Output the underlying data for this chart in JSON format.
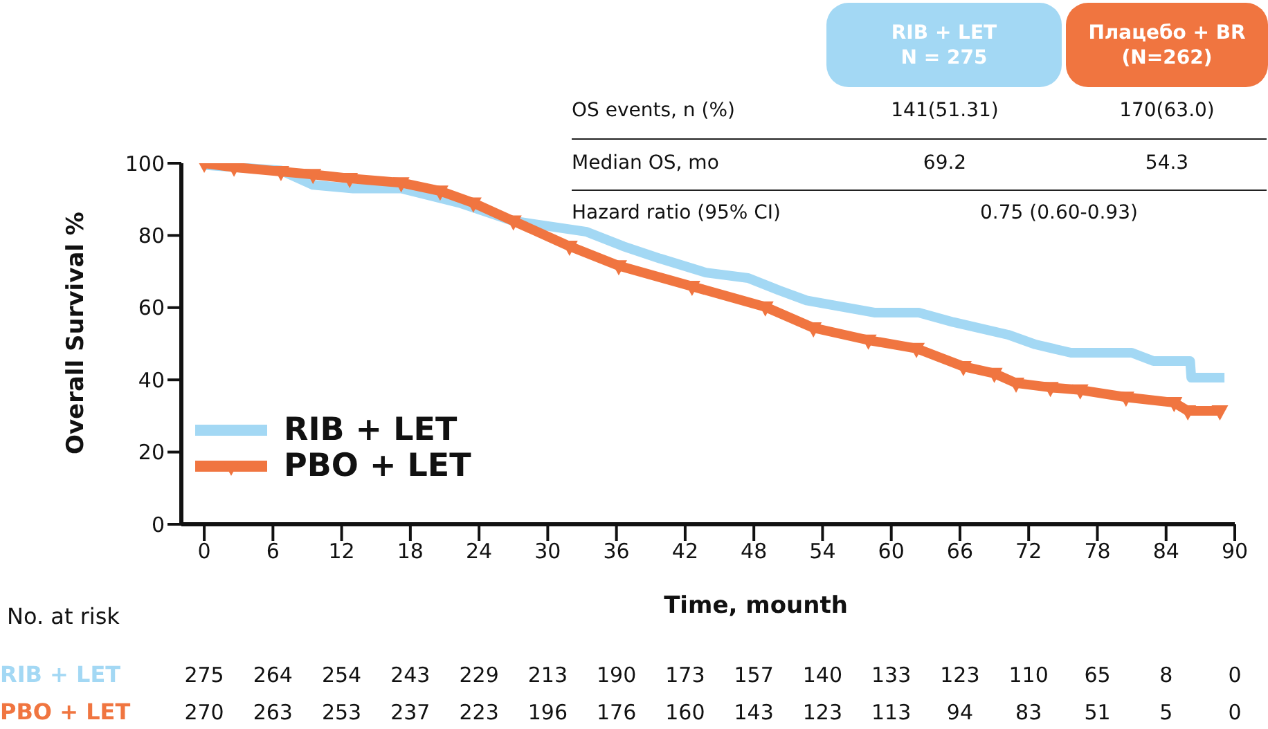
{
  "chart_data": {
    "type": "line",
    "ylabel": "Overall Survival %",
    "xlabel": "Time, mounth",
    "xlim": [
      -2,
      90
    ],
    "xticks": [
      0,
      6,
      12,
      18,
      24,
      30,
      36,
      42,
      48,
      54,
      60,
      66,
      72,
      78,
      84,
      90
    ],
    "ylim": [
      0,
      100
    ],
    "yticks": [
      0,
      20,
      40,
      60,
      80,
      100
    ],
    "legend": "bottom left",
    "line_style": "solid",
    "series": [
      {
        "name": "RIB + LET",
        "color": "#a3d8f4",
        "marker": "none",
        "x": [
          0,
          6.7,
          9.5,
          13,
          17.2,
          22.3,
          27,
          33.4,
          36.6,
          39.8,
          43.8,
          47.5,
          50.2,
          52.6,
          58.6,
          62.4,
          65.4,
          70.2,
          72.6,
          75.7,
          81,
          82.9,
          86.1,
          86.2,
          89.1
        ],
        "values": [
          99.5,
          98,
          94,
          93,
          93,
          89,
          84,
          81,
          77,
          73.6,
          69.7,
          68.2,
          64.8,
          62,
          58.6,
          58.6,
          56,
          52.5,
          49.8,
          47.5,
          47.5,
          45.2,
          45.2,
          40.6,
          40.6
        ]
      },
      {
        "name": "PBO + LET",
        "color": "#f07540",
        "marker": "triangle",
        "x": [
          0,
          2.6,
          6.7,
          9.5,
          12.7,
          17.2,
          20.6,
          23.5,
          27,
          31.9,
          36.2,
          42.6,
          49,
          53.2,
          58,
          62.2,
          66.3,
          69,
          70.9,
          73.9,
          76.5,
          80.5,
          84.7,
          85.9,
          88.7
        ],
        "values": [
          100,
          98.9,
          97.7,
          96.9,
          95.8,
          94.6,
          92.3,
          89,
          84,
          77,
          71.6,
          65.9,
          60.2,
          54.4,
          51,
          48.7,
          43.7,
          41.8,
          39.1,
          37.9,
          37.2,
          35.2,
          33.7,
          31.4,
          31.4
        ]
      }
    ],
    "annotations": [
      "RIB + LET\nN = 275",
      "Плацебо + BR\n(N=262)",
      "OS events, n (%)",
      "141(51.31)",
      "170(63.0)",
      "Median OS, mo",
      "69.2",
      "54.3",
      "Hazard ratio (95% CI)",
      "0.75 (0.60-0.93)",
      "No. at risk",
      "275",
      "264",
      "254",
      "243",
      "229",
      "213",
      "190",
      "173",
      "157",
      "140",
      "133",
      "123",
      "110",
      "65",
      "8",
      "0",
      "270",
      "263",
      "253",
      "237",
      "223",
      "196",
      "176",
      "160",
      "143",
      "123",
      "113",
      "94",
      "83",
      "51",
      "5",
      "0"
    ]
  }
}
